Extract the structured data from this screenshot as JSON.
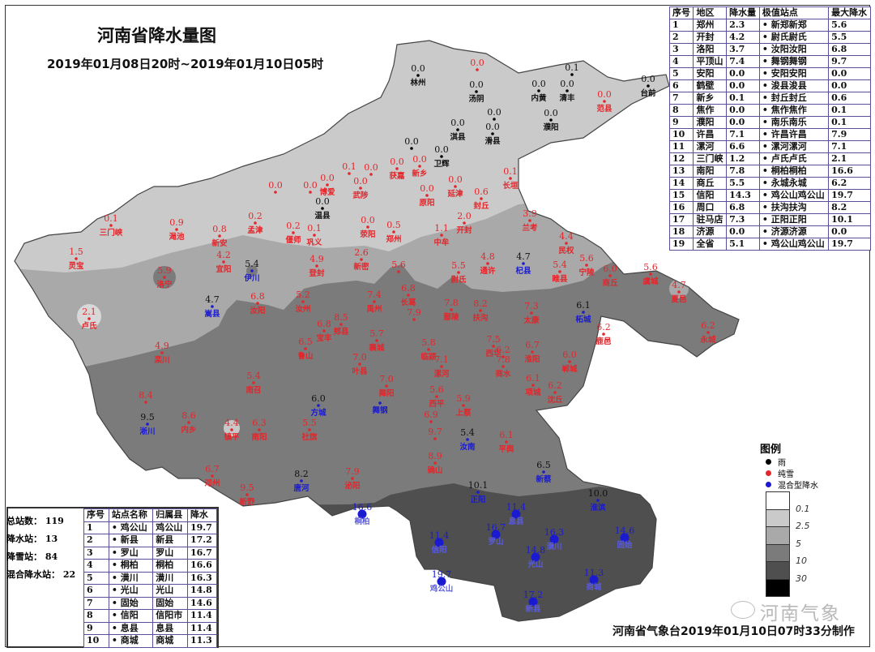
{
  "title": "河南省降水量图",
  "subtitle": "2019年01月08日20时~2019年01月10日05时",
  "colors": {
    "rain": "#000000",
    "snow": "#e3262b",
    "mixed": "#1a1ad0",
    "zone_0": "#ffffff",
    "zone_0_1": "#cacaca",
    "zone_2_5": "#a9a9a9",
    "zone_5": "#7b7b7b",
    "zone_10": "#4f4f4f",
    "zone_30": "#000000"
  },
  "region_table": {
    "headers": [
      "序号",
      "地区",
      "降水量",
      "极值站点",
      "最大降水"
    ],
    "rows": [
      [
        "1",
        "郑州",
        "2.3",
        "• 新郑新郑",
        "5.6"
      ],
      [
        "2",
        "开封",
        "4.2",
        "• 尉氏尉氏",
        "5.5"
      ],
      [
        "3",
        "洛阳",
        "3.7",
        "• 汝阳汝阳",
        "6.8"
      ],
      [
        "4",
        "平顶山",
        "7.4",
        "• 舞钢舞钢",
        "9.7"
      ],
      [
        "5",
        "安阳",
        "0.0",
        "• 安阳安阳",
        "0.0"
      ],
      [
        "6",
        "鹤壁",
        "0.0",
        "• 浚县浚县",
        "0.0"
      ],
      [
        "7",
        "新乡",
        "0.1",
        "• 封丘封丘",
        "0.6"
      ],
      [
        "8",
        "焦作",
        "0.0",
        "• 焦作焦作",
        "0.1"
      ],
      [
        "9",
        "濮阳",
        "0.0",
        "• 南乐南乐",
        "0.1"
      ],
      [
        "10",
        "许昌",
        "7.1",
        "• 许昌许昌",
        "7.9"
      ],
      [
        "11",
        "漯河",
        "6.6",
        "• 漯河漯河",
        "7.1"
      ],
      [
        "12",
        "三门峡",
        "1.2",
        "• 卢氏卢氏",
        "2.1"
      ],
      [
        "13",
        "南阳",
        "7.8",
        "• 桐柏桐柏",
        "16.6"
      ],
      [
        "14",
        "商丘",
        "5.5",
        "• 永城永城",
        "6.2"
      ],
      [
        "15",
        "信阳",
        "14.3",
        "• 鸡公山鸡公山",
        "19.7"
      ],
      [
        "16",
        "周口",
        "6.8",
        "• 扶沟扶沟",
        "8.2"
      ],
      [
        "17",
        "驻马店",
        "7.3",
        "• 正阳正阳",
        "10.1"
      ],
      [
        "18",
        "济源",
        "0.0",
        "• 济源济源",
        "0.0"
      ],
      [
        "19",
        "全省",
        "5.1",
        "• 鸡公山鸡公山",
        "19.7"
      ]
    ]
  },
  "stats": [
    {
      "label": "总站数：",
      "value": "119"
    },
    {
      "label": "降水站：",
      "value": "13"
    },
    {
      "label": "降雪站：",
      "value": "84"
    },
    {
      "label": "混合降水站：",
      "value": "22"
    }
  ],
  "top_table": {
    "headers": [
      "序号",
      "站点名称",
      "归属县",
      "降水"
    ],
    "rows": [
      [
        "1",
        "• 鸡公山",
        "鸡公山",
        "19.7"
      ],
      [
        "2",
        "• 新县",
        "新县",
        "17.2"
      ],
      [
        "3",
        "• 罗山",
        "罗山",
        "16.7"
      ],
      [
        "4",
        "• 桐柏",
        "桐柏",
        "16.6"
      ],
      [
        "5",
        "• 潢川",
        "潢川",
        "16.3"
      ],
      [
        "6",
        "• 光山",
        "光山",
        "14.8"
      ],
      [
        "7",
        "• 固始",
        "固始",
        "14.6"
      ],
      [
        "8",
        "• 信阳",
        "信阳市",
        "11.4"
      ],
      [
        "9",
        "• 息县",
        "息县",
        "11.4"
      ],
      [
        "10",
        "• 商城",
        "商城",
        "11.3"
      ]
    ]
  },
  "legend": {
    "title": "图例",
    "types": [
      {
        "label": "雨",
        "type": "rain"
      },
      {
        "label": "纯雪",
        "type": "snow"
      },
      {
        "label": "混合型降水",
        "type": "mixed"
      }
    ],
    "scale_labels": [
      "0.1",
      "2.5",
      "5",
      "10",
      "30"
    ]
  },
  "stations": [
    {
      "name": "林州",
      "value": "0.0",
      "type": "rain"
    },
    {
      "name": "",
      "value": "0.0",
      "type": "snow"
    },
    {
      "name": "汤阴",
      "value": "0.0",
      "type": "rain"
    },
    {
      "name": "内黄",
      "value": "0.0",
      "type": "rain"
    },
    {
      "name": "清丰",
      "value": "0.0",
      "type": "rain"
    },
    {
      "name": "",
      "value": "0.1",
      "type": "rain"
    },
    {
      "name": "濮阳",
      "value": "0.0",
      "type": "rain"
    },
    {
      "name": "范县",
      "value": "0.0",
      "type": "snow"
    },
    {
      "name": "台前",
      "value": "0.0",
      "type": "rain"
    },
    {
      "name": "淇县",
      "value": "0.0",
      "type": "rain"
    },
    {
      "name": "滑县",
      "value": "0.0",
      "type": "rain"
    },
    {
      "name": "",
      "value": "0.0",
      "type": "rain"
    },
    {
      "name": "卫辉",
      "value": "0.0",
      "type": "rain"
    },
    {
      "name": "",
      "value": "0.0",
      "type": "rain"
    },
    {
      "name": "新乡",
      "value": "0.0",
      "type": "snow"
    },
    {
      "name": "获嘉",
      "value": "0.0",
      "type": "snow"
    },
    {
      "name": "",
      "value": "0.1",
      "type": "snow"
    },
    {
      "name": "",
      "value": "0.0",
      "type": "snow"
    },
    {
      "name": "武陟",
      "value": "0.0",
      "type": "snow"
    },
    {
      "name": "博爱",
      "value": "0.0",
      "type": "snow"
    },
    {
      "name": "",
      "value": "0.0",
      "type": "snow"
    },
    {
      "name": "",
      "value": "0.0",
      "type": "snow"
    },
    {
      "name": "温县",
      "value": "0.0",
      "type": "rain"
    },
    {
      "name": "原阳",
      "value": "0.0",
      "type": "snow"
    },
    {
      "name": "延津",
      "value": "0.0",
      "type": "snow"
    },
    {
      "name": "封丘",
      "value": "0.6",
      "type": "snow"
    },
    {
      "name": "长垣",
      "value": "0.1",
      "type": "snow"
    },
    {
      "name": "三门峡",
      "value": "0.1",
      "type": "snow"
    },
    {
      "name": "渑池",
      "value": "0.9",
      "type": "snow"
    },
    {
      "name": "新安",
      "value": "0.8",
      "type": "snow"
    },
    {
      "name": "孟津",
      "value": "0.2",
      "type": "snow"
    },
    {
      "name": "偃师",
      "value": "0.2",
      "type": "snow"
    },
    {
      "name": "巩义",
      "value": "0.1",
      "type": "snow"
    },
    {
      "name": "荥阳",
      "value": "0.0",
      "type": "snow"
    },
    {
      "name": "郑州",
      "value": "0.5",
      "type": "snow"
    },
    {
      "name": "中牟",
      "value": "1.1",
      "type": "snow"
    },
    {
      "name": "开封",
      "value": "2.0",
      "type": "snow"
    },
    {
      "name": "灵宝",
      "value": "1.5",
      "type": "snow"
    },
    {
      "name": "宜阳",
      "value": "4.2",
      "type": "snow"
    },
    {
      "name": "伊川",
      "value": "5.4",
      "type": "mixed"
    },
    {
      "name": "登封",
      "value": "4.9",
      "type": "snow"
    },
    {
      "name": "新密",
      "value": "2.6",
      "type": "snow"
    },
    {
      "name": "",
      "value": "5.6",
      "type": "snow"
    },
    {
      "name": "兰考",
      "value": "3.9",
      "type": "snow"
    },
    {
      "name": "杞县",
      "value": "4.7",
      "type": "mixed"
    },
    {
      "name": "通许",
      "value": "4.8",
      "type": "snow"
    },
    {
      "name": "尉氏",
      "value": "5.5",
      "type": "snow"
    },
    {
      "name": "民权",
      "value": "4.4",
      "type": "snow"
    },
    {
      "name": "睢县",
      "value": "5.4",
      "type": "snow"
    },
    {
      "name": "宁陵",
      "value": "5.6",
      "type": "snow"
    },
    {
      "name": "商丘",
      "value": "6.0",
      "type": "snow"
    },
    {
      "name": "虞城",
      "value": "5.6",
      "type": "snow"
    },
    {
      "name": "夏邑",
      "value": "4.7",
      "type": "snow"
    },
    {
      "name": "永城",
      "value": "6.2",
      "type": "snow"
    },
    {
      "name": "柘城",
      "value": "6.1",
      "type": "mixed"
    },
    {
      "name": "鹿邑",
      "value": "6.2",
      "type": "snow"
    },
    {
      "name": "洛宁",
      "value": "5.9",
      "type": "snow"
    },
    {
      "name": "卢氏",
      "value": "2.1",
      "type": "snow"
    },
    {
      "name": "嵩县",
      "value": "4.7",
      "type": "mixed"
    },
    {
      "name": "栾川",
      "value": "4.9",
      "type": "snow"
    },
    {
      "name": "汝阳",
      "value": "6.8",
      "type": "snow"
    },
    {
      "name": "汝州",
      "value": "5.2",
      "type": "snow"
    },
    {
      "name": "禹州",
      "value": "7.4",
      "type": "snow"
    },
    {
      "name": "长葛",
      "value": "6.8",
      "type": "snow"
    },
    {
      "name": "",
      "value": "7.9",
      "type": "snow"
    },
    {
      "name": "鄢陵",
      "value": "7.8",
      "type": "snow"
    },
    {
      "name": "扶沟",
      "value": "8.2",
      "type": "snow"
    },
    {
      "name": "太康",
      "value": "7.3",
      "type": "snow"
    },
    {
      "name": "郏县",
      "value": "8.5",
      "type": "snow"
    },
    {
      "name": "宝丰",
      "value": "6.8",
      "type": "snow"
    },
    {
      "name": "鲁山",
      "value": "6.5",
      "type": "snow"
    },
    {
      "name": "襄城",
      "value": "5.7",
      "type": "snow"
    },
    {
      "name": "临颍",
      "value": "5.8",
      "type": "snow"
    },
    {
      "name": "西华",
      "value": "7.5",
      "type": "snow"
    },
    {
      "name": "商水",
      "value": "7.8",
      "type": "snow"
    },
    {
      "name": "",
      "value": "6.2",
      "type": "snow"
    },
    {
      "name": "淮阳",
      "value": "6.7",
      "type": "snow"
    },
    {
      "name": "郸城",
      "value": "6.0",
      "type": "snow"
    },
    {
      "name": "项城",
      "value": "6.1",
      "type": "snow"
    },
    {
      "name": "沈丘",
      "value": "6.2",
      "type": "snow"
    },
    {
      "name": "叶县",
      "value": "7.0",
      "type": "snow"
    },
    {
      "name": "漯河",
      "value": "7.1",
      "type": "snow"
    },
    {
      "name": "舞阳",
      "value": "7.0",
      "type": "snow"
    },
    {
      "name": "舞钢",
      "value": "",
      "type": "mixed"
    },
    {
      "name": "西平",
      "value": "5.6",
      "type": "snow"
    },
    {
      "name": "上蔡",
      "value": "5.9",
      "type": "snow"
    },
    {
      "name": "",
      "value": "6.9",
      "type": "snow"
    },
    {
      "name": "",
      "value": "9.7",
      "type": "snow"
    },
    {
      "name": "确山",
      "value": "8.9",
      "type": "snow"
    },
    {
      "name": "汝南",
      "value": "5.4",
      "type": "mixed"
    },
    {
      "name": "平舆",
      "value": "6.1",
      "type": "snow"
    },
    {
      "name": "新蔡",
      "value": "6.5",
      "type": "mixed"
    },
    {
      "name": "正阳",
      "value": "10.1",
      "type": "mixed"
    },
    {
      "name": "泌阳",
      "value": "7.9",
      "type": "snow"
    },
    {
      "name": "唐河",
      "value": "8.2",
      "type": "mixed"
    },
    {
      "name": "社旗",
      "value": "5.5",
      "type": "snow"
    },
    {
      "name": "方城",
      "value": "6.0",
      "type": "mixed"
    },
    {
      "name": "南召",
      "value": "5.4",
      "type": "snow"
    },
    {
      "name": "南阳",
      "value": "6.3",
      "type": "snow"
    },
    {
      "name": "镇平",
      "value": "4.4",
      "type": "snow"
    },
    {
      "name": "内乡",
      "value": "8.6",
      "type": "snow"
    },
    {
      "name": "淅川",
      "value": "9.5",
      "type": "mixed"
    },
    {
      "name": "",
      "value": "8.4",
      "type": "snow"
    },
    {
      "name": "邓州",
      "value": "6.7",
      "type": "snow"
    },
    {
      "name": "新野",
      "value": "9.5",
      "type": "snow"
    },
    {
      "name": "淮滨",
      "value": "10.0",
      "type": "mixed"
    },
    {
      "name": "桐柏",
      "value": "16.6",
      "type": "mixed"
    },
    {
      "name": "信阳",
      "value": "11.4",
      "type": "mixed"
    },
    {
      "name": "鸡公山",
      "value": "19.7",
      "type": "mixed"
    },
    {
      "name": "罗山",
      "value": "16.7",
      "type": "mixed"
    },
    {
      "name": "息县",
      "value": "11.4",
      "type": "mixed"
    },
    {
      "name": "潢川",
      "value": "16.3",
      "type": "mixed"
    },
    {
      "name": "光山",
      "value": "14.8",
      "type": "mixed"
    },
    {
      "name": "固始",
      "value": "14.6",
      "type": "mixed"
    },
    {
      "name": "商城",
      "value": "11.3",
      "type": "mixed"
    },
    {
      "name": "新县",
      "value": "17.2",
      "type": "mixed"
    }
  ],
  "watermark": "河南气象",
  "footer": "河南省气象台2019年01月10日07时33分制作"
}
